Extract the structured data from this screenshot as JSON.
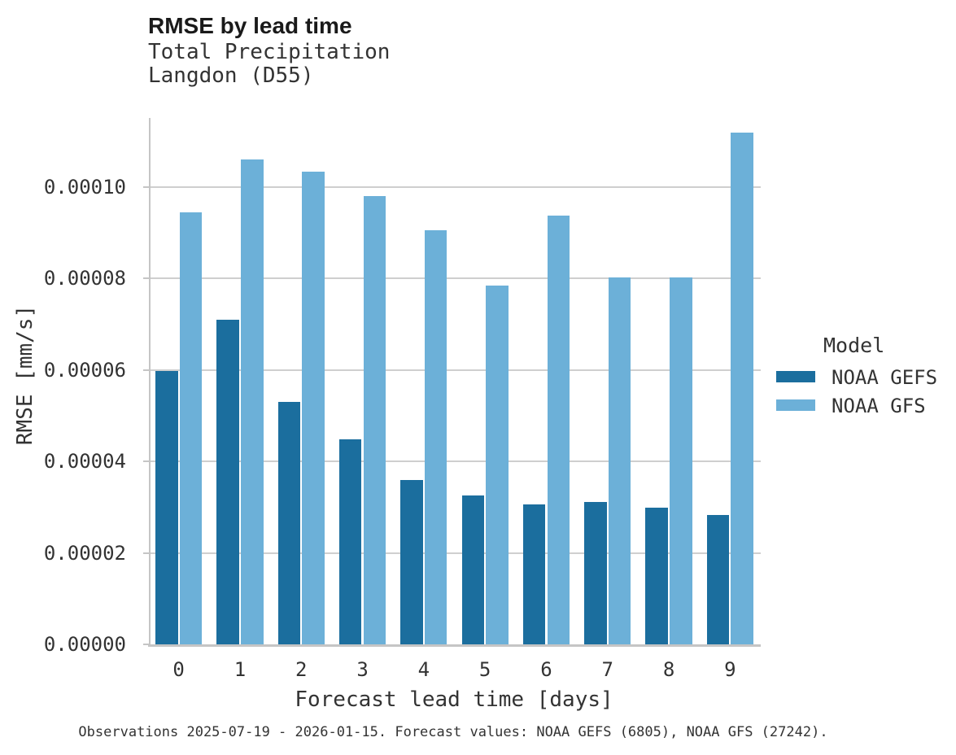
{
  "header": {
    "title": "RMSE by lead time",
    "subtitle_lines": [
      "Total Precipitation",
      "Langdon (D55)"
    ]
  },
  "caption": "Observations 2025-07-19 - 2026-01-15. Forecast values: NOAA GEFS (6805), NOAA GFS (27242).",
  "legend": {
    "title": "Model",
    "entries": [
      "NOAA GEFS",
      "NOAA GFS"
    ]
  },
  "colors": {
    "gefs_dark_blue": "#1B6E9E",
    "gfs_light_blue": "#6CB0D8",
    "grid": "#CFCFCF",
    "axis": "#C5C5C5",
    "text": "#333333",
    "title_text": "#1A1A1A",
    "background": "#FFFFFF"
  },
  "chart_data": {
    "type": "bar",
    "title": "RMSE by lead time",
    "subtitle": "Total Precipitation / Langdon (D55)",
    "xlabel": "Forecast lead time [days]",
    "ylabel": "RMSE [mm/s]",
    "categories": [
      0,
      1,
      2,
      3,
      4,
      5,
      6,
      7,
      8,
      9
    ],
    "series": [
      {
        "name": "NOAA GEFS",
        "color": "#1B6E9E",
        "values": [
          5.97e-05,
          7.1e-05,
          5.31e-05,
          4.48e-05,
          3.59e-05,
          3.25e-05,
          3.06e-05,
          3.11e-05,
          2.98e-05,
          2.83e-05
        ]
      },
      {
        "name": "NOAA GFS",
        "color": "#6CB0D8",
        "values": [
          9.45e-05,
          0.000106,
          0.0001034,
          9.81e-05,
          9.06e-05,
          7.84e-05,
          9.37e-05,
          8.03e-05,
          8.03e-05,
          0.0001119
        ]
      }
    ],
    "ylim": [
      0,
      0.0001151
    ],
    "yticks": [
      0,
      2e-05,
      4e-05,
      6e-05,
      8e-05,
      0.0001
    ],
    "ytick_labels": [
      "0.00000",
      "0.00002",
      "0.00004",
      "0.00006",
      "0.00008",
      "0.00010"
    ],
    "grid": "horizontal",
    "legend_title": "Model",
    "legend_position": "right"
  }
}
